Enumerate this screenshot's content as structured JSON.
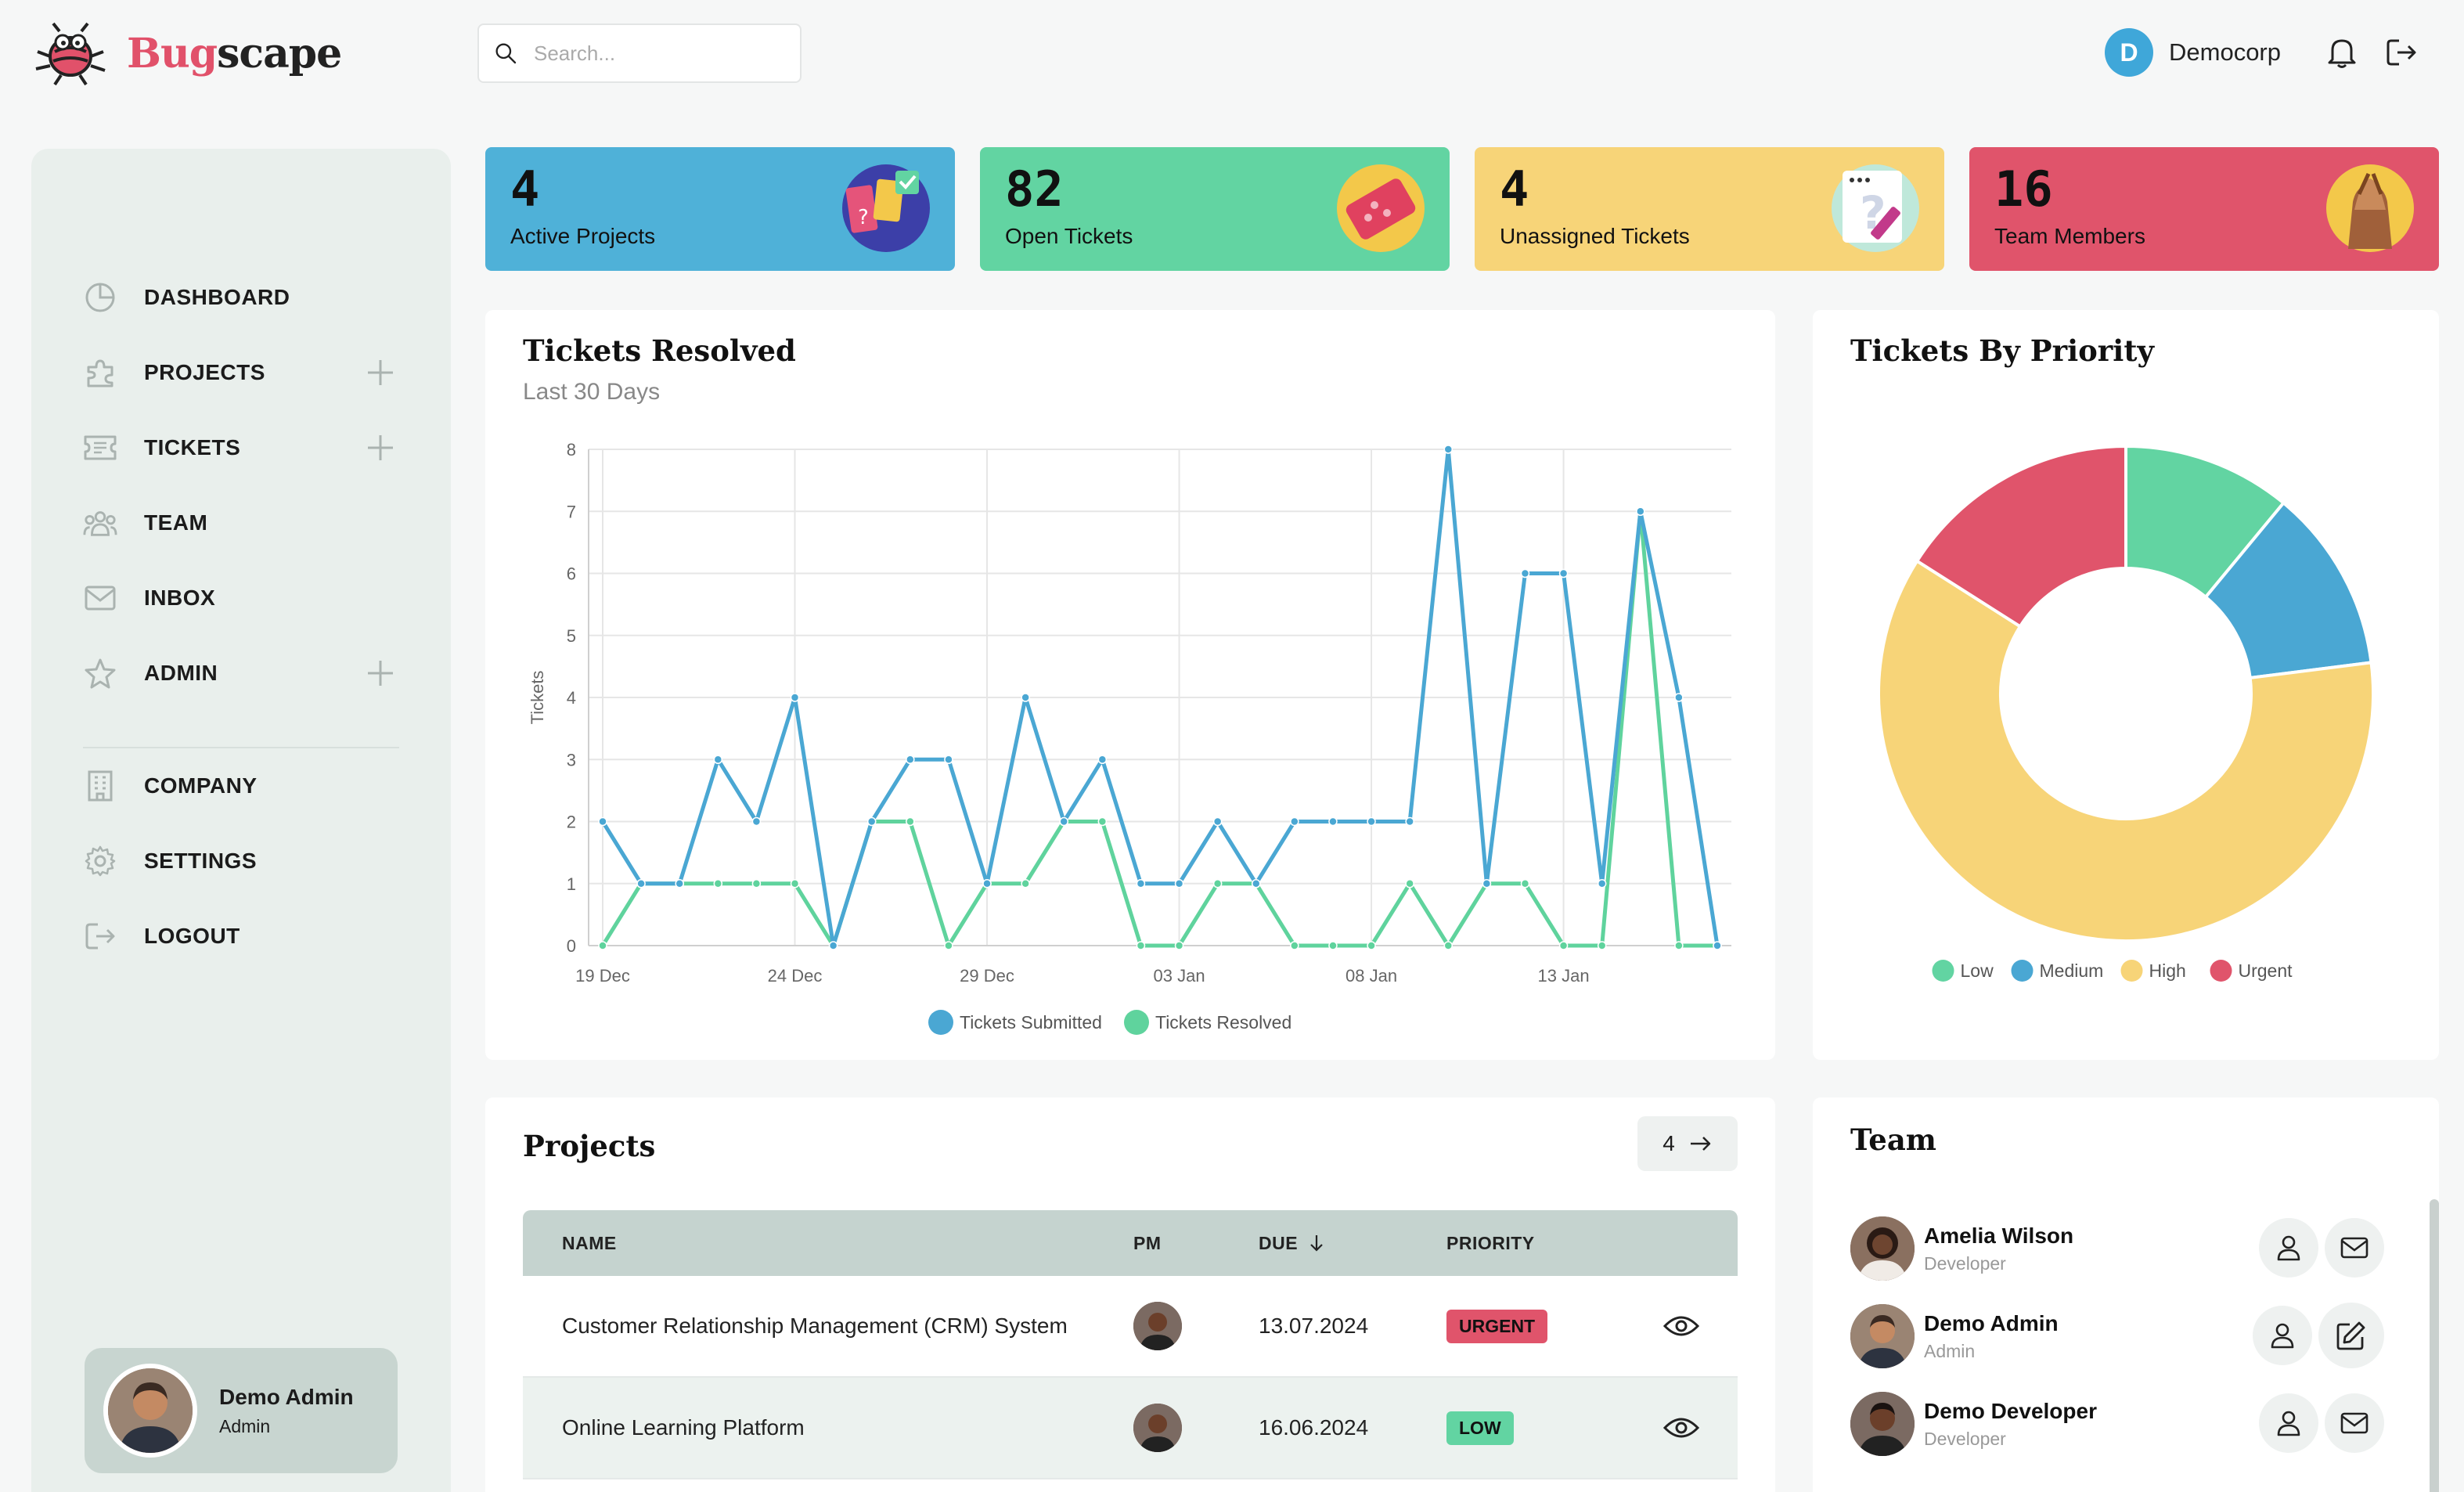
{
  "app": {
    "logo_part1": "Bug",
    "logo_part2": "scape",
    "search_placeholder": "Search...",
    "company_initial": "D",
    "company_name": "Democorp"
  },
  "sidebar": {
    "items": [
      {
        "label": "DASHBOARD",
        "icon": "pie-chart-icon",
        "expandable": false
      },
      {
        "label": "PROJECTS",
        "icon": "puzzle-icon",
        "expandable": true
      },
      {
        "label": "TICKETS",
        "icon": "ticket-icon",
        "expandable": true
      },
      {
        "label": "TEAM",
        "icon": "team-icon",
        "expandable": false
      },
      {
        "label": "INBOX",
        "icon": "mail-icon",
        "expandable": false
      },
      {
        "label": "ADMIN",
        "icon": "star-icon",
        "expandable": true
      }
    ],
    "items2": [
      {
        "label": "COMPANY",
        "icon": "building-icon"
      },
      {
        "label": "SETTINGS",
        "icon": "gear-icon"
      },
      {
        "label": "LOGOUT",
        "icon": "logout-icon"
      }
    ],
    "user": {
      "name": "Demo Admin",
      "role": "Admin"
    }
  },
  "stats": [
    {
      "value": "4",
      "label": "Active Projects",
      "color": "#4fb1d8"
    },
    {
      "value": "82",
      "label": "Open Tickets",
      "color": "#62d4a2"
    },
    {
      "value": "4",
      "label": "Unassigned Tickets",
      "color": "#f7d478"
    },
    {
      "value": "16",
      "label": "Team Members",
      "color": "#e0546b"
    }
  ],
  "resolved_panel": {
    "title": "Tickets Resolved",
    "subtitle": "Last 30 Days"
  },
  "priority_panel": {
    "title": "Tickets By Priority"
  },
  "chart_data": [
    {
      "type": "line",
      "title": "Tickets Resolved",
      "subtitle": "Last 30 Days",
      "ylabel": "Tickets",
      "ylim": [
        0,
        8
      ],
      "yticks": [
        "0",
        "1",
        "2",
        "3",
        "4",
        "5",
        "6",
        "7",
        "8"
      ],
      "xtick_labels": [
        "19 Dec",
        "24 Dec",
        "29 Dec",
        "03 Jan",
        "08 Jan",
        "13 Jan"
      ],
      "legend": "bottom",
      "series": [
        {
          "name": "Tickets Submitted",
          "color": "#4aa7d3",
          "values": [
            2,
            1,
            1,
            3,
            2,
            4,
            0,
            2,
            3,
            3,
            1,
            4,
            2,
            3,
            1,
            1,
            2,
            1,
            2,
            2,
            2,
            2,
            8,
            1,
            6,
            6,
            1,
            7,
            4,
            0
          ]
        },
        {
          "name": "Tickets Resolved",
          "color": "#5fd39d",
          "values": [
            0,
            1,
            1,
            1,
            1,
            1,
            0,
            2,
            2,
            0,
            1,
            1,
            2,
            2,
            0,
            0,
            1,
            1,
            0,
            0,
            0,
            1,
            0,
            1,
            1,
            0,
            0,
            7,
            0,
            0
          ]
        }
      ]
    },
    {
      "type": "pie",
      "title": "Tickets By Priority",
      "legend": "bottom",
      "slices": [
        {
          "label": "Low",
          "value": 11,
          "color": "#62d4a2"
        },
        {
          "label": "Medium",
          "value": 12,
          "color": "#4aa7d3"
        },
        {
          "label": "High",
          "value": 61,
          "color": "#f7d478"
        },
        {
          "label": "Urgent",
          "value": 16,
          "color": "#e0546b"
        }
      ]
    }
  ],
  "projects": {
    "title": "Projects",
    "count": "4",
    "columns": {
      "name": "NAME",
      "pm": "PM",
      "due": "DUE",
      "priority": "PRIORITY"
    },
    "rows": [
      {
        "name": "Customer Relationship Management (CRM) System",
        "due": "13.07.2024",
        "priority": "URGENT",
        "priority_color": "#e0546b"
      },
      {
        "name": "Online Learning Platform",
        "due": "16.06.2024",
        "priority": "LOW",
        "priority_color": "#62d4a2"
      }
    ]
  },
  "team": {
    "title": "Team",
    "members": [
      {
        "name": "Amelia Wilson",
        "role": "Developer",
        "action": "mail"
      },
      {
        "name": "Demo Admin",
        "role": "Admin",
        "action": "edit"
      },
      {
        "name": "Demo Developer",
        "role": "Developer",
        "action": "mail"
      }
    ]
  }
}
